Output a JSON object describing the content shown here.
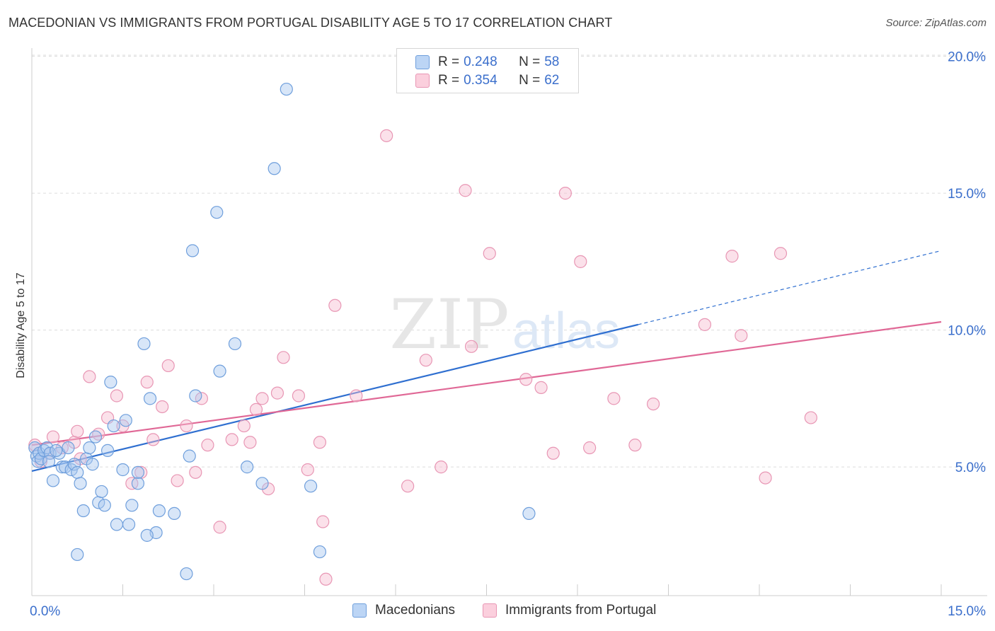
{
  "title": "MACEDONIAN VS IMMIGRANTS FROM PORTUGAL DISABILITY AGE 5 TO 17 CORRELATION CHART",
  "source": "Source: ZipAtlas.com",
  "watermark": {
    "zip": "ZIP",
    "atlas": "atlas"
  },
  "legend_top": [
    {
      "r_label": "R =",
      "r_value": "0.248",
      "n_label": "N =",
      "n_value": "58"
    },
    {
      "r_label": "R =",
      "r_value": "0.354",
      "n_label": "N =",
      "n_value": "62"
    }
  ],
  "legend_bottom": [
    "Macedonians",
    "Immigrants from Portugal"
  ],
  "colors": {
    "blue_fill": "#a8c8f0",
    "blue_stroke": "#6f9fdc",
    "blue_line": "#2f6fd0",
    "pink_fill": "#f7bcd0",
    "pink_stroke": "#e896b4",
    "pink_line": "#e06896",
    "axis_text": "#3b6fcc",
    "grid": "#dddddd"
  },
  "chart_data": {
    "type": "scatter",
    "title": "MACEDONIAN VS IMMIGRANTS FROM PORTUGAL DISABILITY AGE 5 TO 17 CORRELATION CHART",
    "xlabel": "",
    "ylabel": "Disability Age 5 to 17",
    "xlim": [
      0,
      15
    ],
    "ylim": [
      0.3,
      20.3
    ],
    "x_tick_labels": [
      "0.0%",
      "15.0%"
    ],
    "y_tick_labels": [
      "5.0%",
      "10.0%",
      "15.0%",
      "20.0%"
    ],
    "y_ticks": [
      5,
      10,
      15,
      20
    ],
    "series": [
      {
        "name": "Macedonians",
        "r": 0.248,
        "n": 58,
        "trend": {
          "x0": 0,
          "y0": 4.85,
          "x1": 10.0,
          "y1": 10.2,
          "dashed_to_x": 15.0,
          "dashed_to_y": 12.9
        },
        "points": [
          [
            0.05,
            5.7
          ],
          [
            0.08,
            5.4
          ],
          [
            0.1,
            5.2
          ],
          [
            0.12,
            5.5
          ],
          [
            0.15,
            5.3
          ],
          [
            0.2,
            5.6
          ],
          [
            0.25,
            5.7
          ],
          [
            0.3,
            5.5
          ],
          [
            0.35,
            4.5
          ],
          [
            0.45,
            5.5
          ],
          [
            0.5,
            5.0
          ],
          [
            0.55,
            5.0
          ],
          [
            0.6,
            5.7
          ],
          [
            0.65,
            4.9
          ],
          [
            0.7,
            5.1
          ],
          [
            0.75,
            4.8
          ],
          [
            0.8,
            4.4
          ],
          [
            0.9,
            5.3
          ],
          [
            1.0,
            5.1
          ],
          [
            1.05,
            6.1
          ],
          [
            1.1,
            3.7
          ],
          [
            1.15,
            4.1
          ],
          [
            1.2,
            3.6
          ],
          [
            1.3,
            8.1
          ],
          [
            1.35,
            6.5
          ],
          [
            1.4,
            2.9
          ],
          [
            1.5,
            4.9
          ],
          [
            1.55,
            6.7
          ],
          [
            1.65,
            3.6
          ],
          [
            1.75,
            4.4
          ],
          [
            1.85,
            9.5
          ],
          [
            1.95,
            7.5
          ],
          [
            2.05,
            2.6
          ],
          [
            2.1,
            3.4
          ],
          [
            2.35,
            3.3
          ],
          [
            2.55,
            1.1
          ],
          [
            2.6,
            5.4
          ],
          [
            2.7,
            7.6
          ],
          [
            3.1,
            8.5
          ],
          [
            3.35,
            9.5
          ],
          [
            3.55,
            5.0
          ],
          [
            3.8,
            4.4
          ],
          [
            4.0,
            15.9
          ],
          [
            4.2,
            18.8
          ],
          [
            4.6,
            4.3
          ],
          [
            4.75,
            1.9
          ],
          [
            3.05,
            14.3
          ],
          [
            2.65,
            12.9
          ],
          [
            8.2,
            3.3
          ],
          [
            1.9,
            2.5
          ],
          [
            1.6,
            2.9
          ],
          [
            1.25,
            5.6
          ],
          [
            0.85,
            3.4
          ],
          [
            0.95,
            5.7
          ],
          [
            0.4,
            5.6
          ],
          [
            0.28,
            5.2
          ],
          [
            1.75,
            4.8
          ],
          [
            0.75,
            1.8
          ]
        ]
      },
      {
        "name": "Immigrants from Portugal",
        "r": 0.354,
        "n": 62,
        "trend": {
          "x0": 0,
          "y0": 5.8,
          "x1": 15.0,
          "y1": 10.3
        },
        "points": [
          [
            0.05,
            5.8
          ],
          [
            0.15,
            5.2
          ],
          [
            0.3,
            5.5
          ],
          [
            0.35,
            6.1
          ],
          [
            0.5,
            5.7
          ],
          [
            0.7,
            5.9
          ],
          [
            0.75,
            6.3
          ],
          [
            0.8,
            5.3
          ],
          [
            0.95,
            8.3
          ],
          [
            1.1,
            6.2
          ],
          [
            1.25,
            6.8
          ],
          [
            1.4,
            7.6
          ],
          [
            1.5,
            6.5
          ],
          [
            1.65,
            4.4
          ],
          [
            1.8,
            4.8
          ],
          [
            1.9,
            8.1
          ],
          [
            2.0,
            6.0
          ],
          [
            2.15,
            7.2
          ],
          [
            2.25,
            8.7
          ],
          [
            2.4,
            4.5
          ],
          [
            2.55,
            6.5
          ],
          [
            2.7,
            4.8
          ],
          [
            2.8,
            7.5
          ],
          [
            2.9,
            5.8
          ],
          [
            3.1,
            2.8
          ],
          [
            3.3,
            6.0
          ],
          [
            3.5,
            6.5
          ],
          [
            3.6,
            5.9
          ],
          [
            3.7,
            7.1
          ],
          [
            3.8,
            7.5
          ],
          [
            3.9,
            4.2
          ],
          [
            4.05,
            7.7
          ],
          [
            4.15,
            9.0
          ],
          [
            4.4,
            7.6
          ],
          [
            4.55,
            4.9
          ],
          [
            4.75,
            5.9
          ],
          [
            4.8,
            3.0
          ],
          [
            4.85,
            0.9
          ],
          [
            5.0,
            10.9
          ],
          [
            5.35,
            7.6
          ],
          [
            5.85,
            17.1
          ],
          [
            6.2,
            4.3
          ],
          [
            6.5,
            8.9
          ],
          [
            6.75,
            5.0
          ],
          [
            7.15,
            15.1
          ],
          [
            7.25,
            9.4
          ],
          [
            7.55,
            12.8
          ],
          [
            8.15,
            8.2
          ],
          [
            8.4,
            7.9
          ],
          [
            8.6,
            5.5
          ],
          [
            8.8,
            15.0
          ],
          [
            9.05,
            12.5
          ],
          [
            9.2,
            5.7
          ],
          [
            9.6,
            7.5
          ],
          [
            9.95,
            5.8
          ],
          [
            10.25,
            7.3
          ],
          [
            11.1,
            10.2
          ],
          [
            11.55,
            12.7
          ],
          [
            11.7,
            9.8
          ],
          [
            12.1,
            4.6
          ],
          [
            12.35,
            12.8
          ],
          [
            12.85,
            6.8
          ]
        ]
      }
    ]
  }
}
